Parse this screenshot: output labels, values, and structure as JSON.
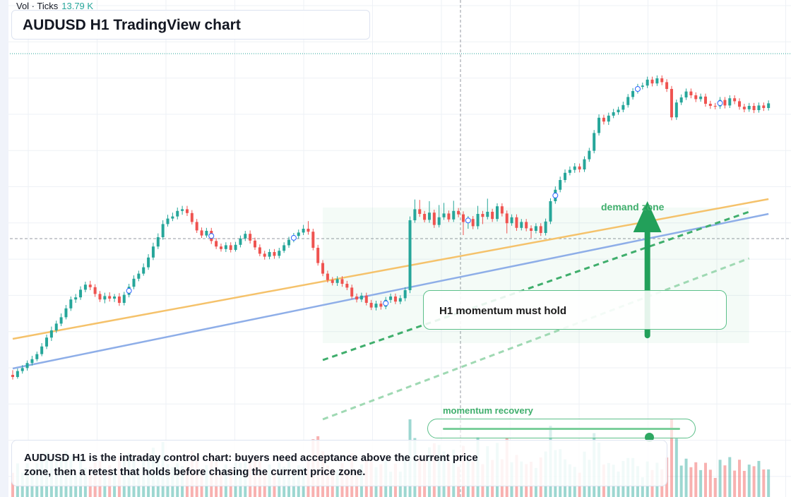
{
  "volume": {
    "label": "Vol · Ticks",
    "value": "13.79 K"
  },
  "title": "AUDUSD H1 TradingView chart",
  "note": "H1 momentum must hold",
  "demand_label": "demand zone",
  "slider": {
    "caption": "momentum recovery",
    "value": 0.87
  },
  "summary": "AUDUSD H1 is the intraday control chart: buyers need acceptance above the current price zone, then a retest that holds before chasing the current price zone.",
  "colors": {
    "up": "#26a69a",
    "down": "#ef5350",
    "accent_green": "#22a05a",
    "orange_line": "#f5c26b",
    "blue_line": "#8eaee8"
  },
  "chart_data": {
    "type": "candlestick",
    "symbol": "AUDUSD",
    "timeframe": "H1",
    "y_scale": "relative price index (no axis printed)",
    "candles": [
      [
        43.5,
        43.0,
        44.6,
        42.4
      ],
      [
        43.0,
        44.4,
        45.0,
        42.6
      ],
      [
        44.4,
        45.1,
        45.8,
        43.8
      ],
      [
        45.1,
        46.3,
        46.9,
        44.5
      ],
      [
        46.3,
        47.2,
        48.0,
        45.7
      ],
      [
        47.2,
        48.4,
        49.0,
        46.7
      ],
      [
        48.4,
        50.2,
        51.0,
        47.9
      ],
      [
        50.2,
        52.3,
        53.0,
        49.6
      ],
      [
        52.3,
        54.0,
        54.9,
        51.5
      ],
      [
        54.0,
        55.6,
        56.3,
        53.4
      ],
      [
        55.6,
        57.1,
        58.0,
        55.0
      ],
      [
        57.1,
        59.2,
        60.0,
        56.6
      ],
      [
        59.2,
        61.3,
        62.0,
        58.6
      ],
      [
        61.3,
        61.8,
        62.6,
        60.5
      ],
      [
        61.8,
        63.6,
        64.4,
        61.2
      ],
      [
        63.6,
        64.8,
        65.5,
        63.0
      ],
      [
        64.8,
        64.2,
        65.7,
        63.5
      ],
      [
        64.2,
        62.6,
        64.9,
        61.9
      ],
      [
        62.6,
        61.3,
        63.3,
        60.7
      ],
      [
        61.3,
        62.1,
        62.9,
        60.4
      ],
      [
        62.1,
        61.5,
        63.0,
        60.8
      ],
      [
        61.5,
        62.0,
        62.6,
        60.7
      ],
      [
        62.0,
        60.5,
        62.8,
        59.8
      ],
      [
        60.5,
        62.4,
        63.1,
        59.9
      ],
      [
        62.4,
        64.3,
        65.0,
        61.8
      ],
      [
        64.3,
        66.2,
        67.0,
        63.7
      ],
      [
        66.2,
        67.4,
        68.1,
        65.6
      ],
      [
        67.4,
        68.9,
        69.8,
        66.9
      ],
      [
        68.9,
        71.2,
        72.0,
        68.3
      ],
      [
        71.2,
        73.8,
        74.7,
        70.6
      ],
      [
        73.8,
        76.0,
        76.9,
        73.2
      ],
      [
        76.0,
        79.1,
        80.0,
        75.4
      ],
      [
        79.1,
        80.4,
        81.3,
        78.5
      ],
      [
        80.4,
        80.9,
        81.8,
        79.8
      ],
      [
        80.9,
        82.2,
        83.0,
        80.2
      ],
      [
        82.2,
        82.6,
        83.4,
        81.3
      ],
      [
        82.6,
        81.7,
        83.4,
        81.0
      ],
      [
        81.7,
        79.6,
        82.4,
        79.0
      ],
      [
        79.6,
        77.6,
        80.3,
        77.0
      ],
      [
        77.6,
        76.4,
        78.3,
        75.8
      ],
      [
        76.4,
        77.5,
        78.2,
        75.9
      ],
      [
        77.5,
        75.1,
        78.2,
        74.4
      ],
      [
        75.1,
        73.8,
        75.8,
        73.2
      ],
      [
        73.8,
        73.2,
        74.5,
        72.6
      ],
      [
        73.2,
        74.1,
        74.8,
        72.5
      ],
      [
        74.1,
        73.0,
        74.8,
        72.4
      ],
      [
        73.0,
        74.2,
        74.9,
        72.6
      ],
      [
        74.2,
        75.7,
        76.4,
        73.6
      ],
      [
        75.7,
        76.8,
        77.5,
        75.1
      ],
      [
        76.8,
        75.2,
        77.6,
        74.5
      ],
      [
        75.2,
        73.6,
        75.9,
        73.0
      ],
      [
        73.6,
        72.1,
        74.3,
        71.5
      ],
      [
        72.1,
        71.4,
        72.8,
        70.7
      ],
      [
        71.4,
        72.5,
        73.2,
        70.8
      ],
      [
        72.5,
        71.6,
        73.2,
        70.9
      ],
      [
        71.6,
        72.8,
        73.5,
        71.0
      ],
      [
        72.8,
        74.1,
        74.8,
        72.3
      ],
      [
        74.1,
        75.4,
        76.1,
        73.5
      ],
      [
        75.4,
        76.3,
        77.0,
        74.8
      ],
      [
        76.3,
        77.1,
        77.8,
        75.7
      ],
      [
        77.1,
        78.0,
        78.9,
        76.5
      ],
      [
        78.0,
        77.3,
        79.8,
        76.6
      ],
      [
        77.3,
        73.5,
        78.0,
        72.9
      ],
      [
        73.5,
        69.9,
        74.2,
        69.3
      ],
      [
        69.9,
        67.4,
        70.6,
        66.8
      ],
      [
        67.4,
        65.9,
        68.1,
        65.3
      ],
      [
        65.9,
        65.2,
        66.6,
        64.6
      ],
      [
        65.2,
        66.1,
        66.8,
        64.5
      ],
      [
        66.1,
        65.0,
        66.8,
        64.3
      ],
      [
        65.0,
        64.1,
        65.7,
        63.5
      ],
      [
        64.1,
        62.0,
        64.8,
        61.4
      ],
      [
        62.0,
        61.3,
        62.7,
        60.6
      ],
      [
        61.3,
        62.2,
        62.9,
        60.7
      ],
      [
        62.2,
        60.5,
        62.9,
        59.9
      ],
      [
        60.5,
        59.4,
        61.2,
        58.8
      ],
      [
        59.4,
        60.3,
        61.0,
        58.7
      ],
      [
        60.3,
        59.6,
        61.0,
        58.9
      ],
      [
        59.6,
        61.2,
        61.9,
        59.0
      ],
      [
        61.2,
        62.0,
        62.7,
        60.5
      ],
      [
        62.0,
        60.8,
        62.7,
        60.2
      ],
      [
        60.8,
        61.6,
        62.3,
        60.2
      ],
      [
        61.6,
        63.5,
        64.2,
        60.9
      ],
      [
        63.5,
        80.0,
        80.9,
        62.8
      ],
      [
        80.0,
        82.6,
        84.9,
        79.4
      ],
      [
        82.6,
        81.5,
        84.8,
        80.8
      ],
      [
        81.5,
        80.1,
        82.2,
        79.5
      ],
      [
        80.1,
        81.8,
        84.5,
        79.4
      ],
      [
        81.8,
        78.9,
        82.5,
        78.2
      ],
      [
        78.9,
        80.7,
        83.6,
        78.3
      ],
      [
        80.7,
        81.6,
        84.1,
        80.1
      ],
      [
        81.6,
        80.2,
        82.3,
        79.6
      ],
      [
        80.2,
        82.2,
        84.6,
        79.6
      ],
      [
        82.2,
        81.4,
        82.9,
        80.7
      ],
      [
        81.4,
        79.6,
        82.1,
        76.5
      ],
      [
        79.6,
        80.3,
        81.0,
        78.0
      ],
      [
        80.3,
        78.6,
        81.0,
        77.9
      ],
      [
        78.6,
        81.5,
        83.4,
        77.9
      ],
      [
        81.5,
        80.8,
        82.2,
        79.1
      ],
      [
        80.8,
        82.0,
        85.1,
        80.2
      ],
      [
        82.0,
        80.3,
        82.7,
        79.6
      ],
      [
        80.3,
        83.3,
        84.0,
        79.7
      ],
      [
        83.3,
        81.6,
        84.0,
        80.9
      ],
      [
        81.6,
        79.3,
        82.3,
        76.9
      ],
      [
        79.3,
        80.7,
        81.4,
        78.7
      ],
      [
        80.7,
        78.2,
        81.4,
        77.5
      ],
      [
        78.2,
        79.6,
        80.3,
        77.6
      ],
      [
        79.6,
        78.1,
        80.3,
        77.4
      ],
      [
        78.1,
        77.5,
        78.8,
        75.8
      ],
      [
        77.5,
        78.6,
        79.3,
        76.9
      ],
      [
        78.6,
        77.0,
        79.3,
        76.3
      ],
      [
        77.0,
        79.7,
        80.4,
        76.4
      ],
      [
        79.7,
        84.5,
        85.2,
        79.1
      ],
      [
        84.5,
        87.2,
        88.0,
        83.9
      ],
      [
        87.2,
        89.5,
        90.3,
        86.6
      ],
      [
        89.5,
        91.2,
        92.0,
        88.9
      ],
      [
        91.2,
        91.9,
        92.7,
        90.6
      ],
      [
        91.9,
        92.7,
        93.5,
        91.2
      ],
      [
        92.7,
        92.0,
        93.4,
        91.3
      ],
      [
        92.0,
        94.4,
        95.1,
        91.4
      ],
      [
        94.4,
        96.4,
        97.1,
        93.8
      ],
      [
        96.4,
        100.6,
        101.3,
        95.8
      ],
      [
        100.6,
        104.2,
        105.0,
        100.0
      ],
      [
        104.2,
        103.3,
        104.9,
        102.6
      ],
      [
        103.3,
        104.7,
        105.4,
        102.5
      ],
      [
        104.7,
        105.5,
        106.3,
        104.1
      ],
      [
        105.5,
        106.1,
        106.8,
        104.9
      ],
      [
        106.1,
        107.2,
        108.0,
        105.5
      ],
      [
        107.2,
        109.1,
        109.8,
        106.6
      ],
      [
        109.1,
        110.5,
        111.2,
        108.5
      ],
      [
        110.5,
        111.5,
        112.2,
        109.9
      ],
      [
        111.5,
        111.8,
        112.5,
        110.9
      ],
      [
        111.8,
        113.2,
        113.9,
        111.2
      ],
      [
        113.2,
        112.3,
        113.9,
        111.6
      ],
      [
        112.3,
        113.5,
        114.2,
        111.7
      ],
      [
        113.5,
        112.6,
        114.2,
        111.9
      ],
      [
        112.6,
        111.0,
        113.3,
        110.3
      ],
      [
        111.0,
        104.3,
        111.7,
        103.6
      ],
      [
        104.3,
        107.8,
        108.5,
        103.7
      ],
      [
        107.8,
        109.0,
        109.7,
        107.2
      ],
      [
        109.0,
        110.4,
        111.1,
        108.4
      ],
      [
        110.4,
        109.5,
        111.1,
        108.8
      ],
      [
        109.5,
        108.6,
        110.2,
        107.9
      ],
      [
        108.6,
        109.2,
        109.9,
        108.0
      ],
      [
        109.2,
        107.5,
        109.9,
        106.8
      ],
      [
        107.5,
        107.0,
        108.2,
        106.3
      ],
      [
        107.0,
        106.9,
        107.7,
        106.2
      ],
      [
        106.9,
        108.4,
        109.1,
        106.3
      ],
      [
        108.4,
        107.1,
        109.1,
        106.4
      ],
      [
        107.1,
        108.8,
        109.5,
        106.5
      ],
      [
        108.8,
        108.1,
        109.5,
        107.4
      ],
      [
        108.1,
        106.8,
        108.8,
        106.1
      ],
      [
        106.8,
        106.2,
        107.5,
        105.5
      ],
      [
        106.2,
        107.0,
        107.7,
        105.6
      ],
      [
        107.0,
        106.0,
        107.7,
        105.3
      ],
      [
        106.0,
        107.1,
        107.8,
        105.4
      ],
      [
        107.1,
        106.5,
        107.8,
        105.8
      ],
      [
        106.5,
        107.6,
        108.3,
        105.9
      ]
    ],
    "trendlines": [
      {
        "style": "solid",
        "color": "#f5c26b",
        "from": [
          0,
          52.0
        ],
        "to": [
          156,
          85.0
        ]
      },
      {
        "style": "solid",
        "color": "#8eaee8",
        "from": [
          0,
          45.0
        ],
        "to": [
          156,
          81.5
        ]
      },
      {
        "style": "dashed",
        "color": "#3fae6c",
        "from": [
          64,
          47.0
        ],
        "to": [
          152,
          82.0
        ]
      },
      {
        "style": "dashed",
        "color": "#9fd9b3",
        "from": [
          64,
          33.0
        ],
        "to": [
          152,
          71.0
        ]
      }
    ],
    "zone": {
      "x_range": [
        64,
        152
      ],
      "y_range": [
        51.0,
        83.0
      ]
    },
    "arrow": {
      "x_index": 131,
      "from": 52.8,
      "to": 84.5
    }
  }
}
